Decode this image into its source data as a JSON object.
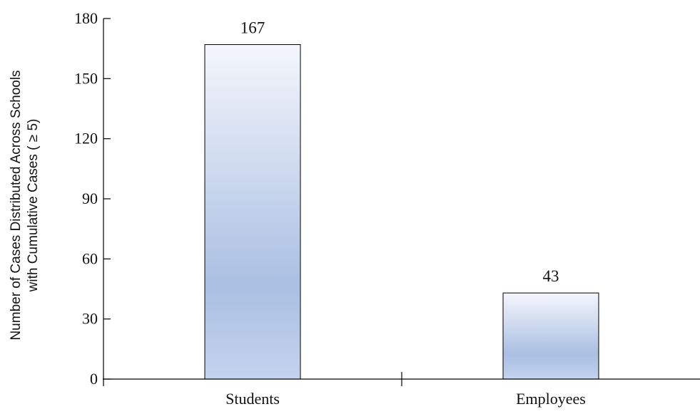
{
  "chart_data": {
    "type": "bar",
    "categories": [
      "Students",
      "Employees"
    ],
    "values": [
      167,
      43
    ],
    "data_labels": [
      "167",
      "43"
    ],
    "title": "",
    "xlabel": "",
    "ylabel_lines": [
      "Number of Cases Distributed Across Schools",
      "with Cumulative Cases ( ≥ 5)"
    ],
    "ylim": [
      0,
      180
    ],
    "yticks": [
      0,
      30,
      60,
      90,
      120,
      150,
      180
    ],
    "grid": false,
    "legend": "none",
    "bar_gradient": [
      "#f4f6fb",
      "#aabfe3",
      "#c4d3ee"
    ],
    "bar_edge_color": "#000000",
    "axis_color": "#000000"
  }
}
